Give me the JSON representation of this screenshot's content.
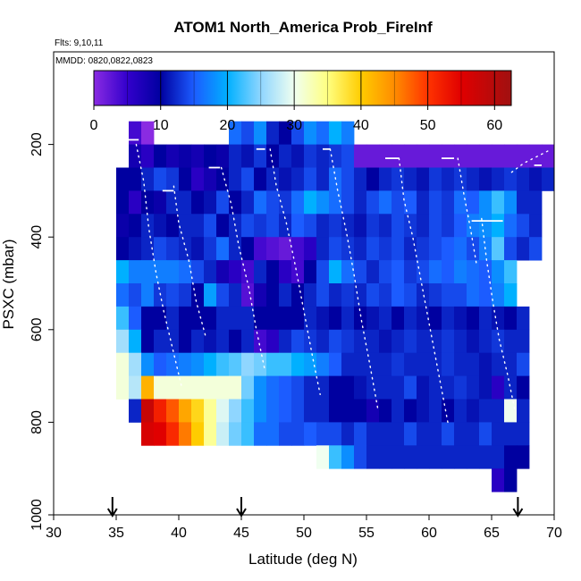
{
  "chart_data": {
    "type": "heatmap",
    "title": "ATOM1 North_America Prob_FireInf",
    "annotations": [
      "Flts: 9,10,11",
      "MMDD: 0820,0822,0823"
    ],
    "xlabel": "Latitude (deg N)",
    "ylabel": "PSXC (mbar)",
    "xlim": [
      30,
      70
    ],
    "ylim": [
      1000,
      0
    ],
    "x_ticks": [
      30,
      35,
      40,
      45,
      50,
      55,
      60,
      65,
      70
    ],
    "y_ticks": [
      200,
      400,
      600,
      800,
      1000
    ],
    "colorbar": {
      "range": [
        0,
        62.5
      ],
      "ticks": [
        0,
        10,
        20,
        30,
        40,
        50,
        60
      ],
      "stops": [
        {
          "v": 0,
          "c": "#8a2be2"
        },
        {
          "v": 5,
          "c": "#3300cc"
        },
        {
          "v": 10,
          "c": "#0000a0"
        },
        {
          "v": 15,
          "c": "#1c5cff"
        },
        {
          "v": 20,
          "c": "#00b0ff"
        },
        {
          "v": 25,
          "c": "#8fd6ff"
        },
        {
          "v": 30,
          "c": "#f0fff0"
        },
        {
          "v": 35,
          "c": "#ffff80"
        },
        {
          "v": 40,
          "c": "#ffcc00"
        },
        {
          "v": 45,
          "c": "#ff8c00"
        },
        {
          "v": 50,
          "c": "#ff3300"
        },
        {
          "v": 55,
          "c": "#e00000"
        },
        {
          "v": 62.5,
          "c": "#a01010"
        }
      ]
    },
    "lat_edges": [
      35,
      36,
      37,
      38,
      39,
      40,
      41,
      42,
      43,
      44,
      45,
      46,
      47,
      48,
      49,
      50,
      51,
      52,
      53,
      54,
      55,
      56,
      57,
      58,
      59,
      60,
      61,
      62,
      63,
      64,
      65,
      66,
      67,
      68,
      69,
      70
    ],
    "p_edges": [
      150,
      200,
      250,
      300,
      350,
      400,
      450,
      500,
      550,
      600,
      650,
      700,
      750,
      800,
      850,
      900,
      950
    ],
    "grid": [
      [
        null,
        4,
        0,
        null,
        null,
        null,
        null,
        null,
        null,
        16,
        14,
        18,
        12,
        10,
        14,
        18,
        16,
        20,
        17,
        null,
        null,
        null,
        null,
        null,
        null,
        null,
        null,
        null,
        null,
        null,
        null,
        null,
        null,
        null,
        null
      ],
      [
        null,
        8,
        6,
        10,
        8,
        9,
        8,
        10,
        9,
        12,
        11,
        13,
        10,
        12,
        11,
        13,
        12,
        13,
        14,
        2,
        2,
        2,
        2,
        2,
        2,
        2,
        2,
        2,
        2,
        2,
        2,
        2,
        2,
        2,
        2
      ],
      [
        10,
        10,
        12,
        14,
        13,
        10,
        6,
        8,
        10,
        12,
        14,
        10,
        12,
        11,
        12,
        14,
        12,
        16,
        14,
        12,
        10,
        12,
        13,
        12,
        11,
        13,
        12,
        13,
        12,
        11,
        12,
        13,
        12,
        11,
        12
      ],
      [
        10,
        6,
        10,
        9,
        12,
        12,
        10,
        11,
        14,
        10,
        12,
        16,
        14,
        13,
        16,
        20,
        18,
        16,
        14,
        12,
        14,
        16,
        14,
        15,
        12,
        14,
        13,
        16,
        15,
        18,
        22,
        18,
        12,
        12,
        null
      ],
      [
        9,
        10,
        12,
        11,
        10,
        12,
        12,
        14,
        10,
        12,
        14,
        13,
        14,
        12,
        15,
        14,
        12,
        13,
        12,
        11,
        13,
        12,
        14,
        13,
        12,
        14,
        13,
        15,
        17,
        18,
        20,
        16,
        14,
        12,
        null
      ],
      [
        10,
        11,
        12,
        14,
        13,
        12,
        11,
        13,
        16,
        12,
        10,
        4,
        3,
        2,
        4,
        6,
        12,
        14,
        13,
        12,
        14,
        13,
        14,
        12,
        13,
        14,
        15,
        16,
        14,
        17,
        23,
        14,
        12,
        14,
        null
      ],
      [
        20,
        17,
        17,
        17,
        17,
        16,
        14,
        12,
        8,
        6,
        4,
        12,
        10,
        6,
        4,
        10,
        14,
        20,
        16,
        14,
        12,
        14,
        15,
        13,
        14,
        16,
        15,
        17,
        16,
        15,
        18,
        22,
        null,
        null,
        null
      ],
      [
        16,
        14,
        17,
        13,
        14,
        13,
        10,
        19,
        14,
        12,
        3,
        8,
        10,
        12,
        10,
        12,
        14,
        12,
        13,
        12,
        14,
        13,
        15,
        14,
        12,
        13,
        14,
        14,
        16,
        15,
        17,
        20,
        null,
        null,
        null
      ],
      [
        22,
        15,
        10,
        10,
        12,
        10,
        10,
        10,
        12,
        12,
        12,
        10,
        10,
        10,
        10,
        12,
        11,
        10,
        12,
        10,
        11,
        12,
        10,
        12,
        11,
        10,
        12,
        11,
        10,
        12,
        11,
        10,
        12,
        null,
        null
      ],
      [
        26,
        20,
        10,
        12,
        12,
        10,
        12,
        11,
        12,
        10,
        12,
        4,
        6,
        12,
        14,
        13,
        12,
        14,
        13,
        12,
        12,
        11,
        12,
        13,
        12,
        12,
        13,
        12,
        11,
        12,
        13,
        12,
        12,
        null,
        null
      ],
      [
        31,
        26,
        18,
        15,
        16,
        17,
        18,
        20,
        22,
        23,
        25,
        24,
        22,
        22,
        20,
        19,
        17,
        15,
        12,
        12,
        12,
        12,
        13,
        12,
        12,
        12,
        13,
        12,
        12,
        11,
        12,
        12,
        14,
        null,
        null
      ],
      [
        31,
        27,
        42,
        31,
        31,
        31,
        31,
        31,
        31,
        31,
        24,
        18,
        16,
        15,
        14,
        12,
        12,
        10,
        10,
        11,
        12,
        12,
        12,
        14,
        11,
        12,
        12,
        13,
        12,
        11,
        6,
        12,
        10,
        null,
        null
      ],
      [
        null,
        12,
        58,
        52,
        48,
        43,
        39,
        34,
        29,
        25,
        22,
        18,
        16,
        15,
        14,
        12,
        12,
        10,
        10,
        10,
        8,
        10,
        12,
        10,
        11,
        12,
        10,
        12,
        11,
        12,
        12,
        30,
        12,
        null,
        null
      ],
      [
        null,
        null,
        56,
        55,
        51,
        46,
        40,
        34,
        28,
        24,
        22,
        16,
        16,
        14,
        14,
        15,
        14,
        14,
        12,
        14,
        12,
        12,
        12,
        14,
        12,
        12,
        14,
        12,
        12,
        14,
        12,
        12,
        12,
        null,
        null
      ],
      [
        null,
        null,
        null,
        null,
        null,
        null,
        null,
        null,
        null,
        null,
        null,
        null,
        null,
        null,
        null,
        null,
        30,
        22,
        18,
        14,
        12,
        12,
        12,
        12,
        12,
        12,
        12,
        12,
        12,
        12,
        12,
        10,
        10,
        null,
        null
      ],
      [
        null,
        null,
        null,
        null,
        null,
        null,
        null,
        null,
        null,
        null,
        null,
        null,
        null,
        null,
        null,
        null,
        null,
        null,
        null,
        null,
        null,
        null,
        null,
        null,
        null,
        null,
        null,
        null,
        null,
        null,
        6,
        10,
        null,
        null,
        null
      ]
    ],
    "flight_markers_lat": [
      34.7,
      45,
      67.1
    ]
  }
}
